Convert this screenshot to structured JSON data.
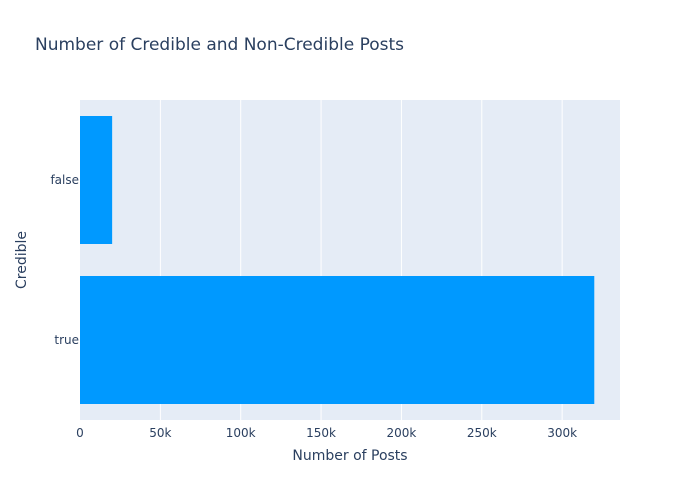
{
  "chart_data": {
    "type": "bar",
    "orientation": "horizontal",
    "title": "Number of Credible and Non-Credible Posts",
    "xlabel": "Number of Posts",
    "ylabel": "Credible",
    "categories": [
      "true",
      "false"
    ],
    "values": [
      320000,
      20000
    ],
    "xlim": [
      0,
      336000
    ],
    "xticks": [
      0,
      50000,
      100000,
      150000,
      200000,
      250000,
      300000
    ],
    "xtick_labels": [
      "0",
      "50k",
      "100k",
      "150k",
      "200k",
      "250k",
      "300k"
    ],
    "grid": true,
    "legend": "none",
    "colors": {
      "bar": "#0099ff",
      "plot_background": "#e5ecf6",
      "grid": "#ffffff",
      "text": "#2a3f5f"
    }
  }
}
